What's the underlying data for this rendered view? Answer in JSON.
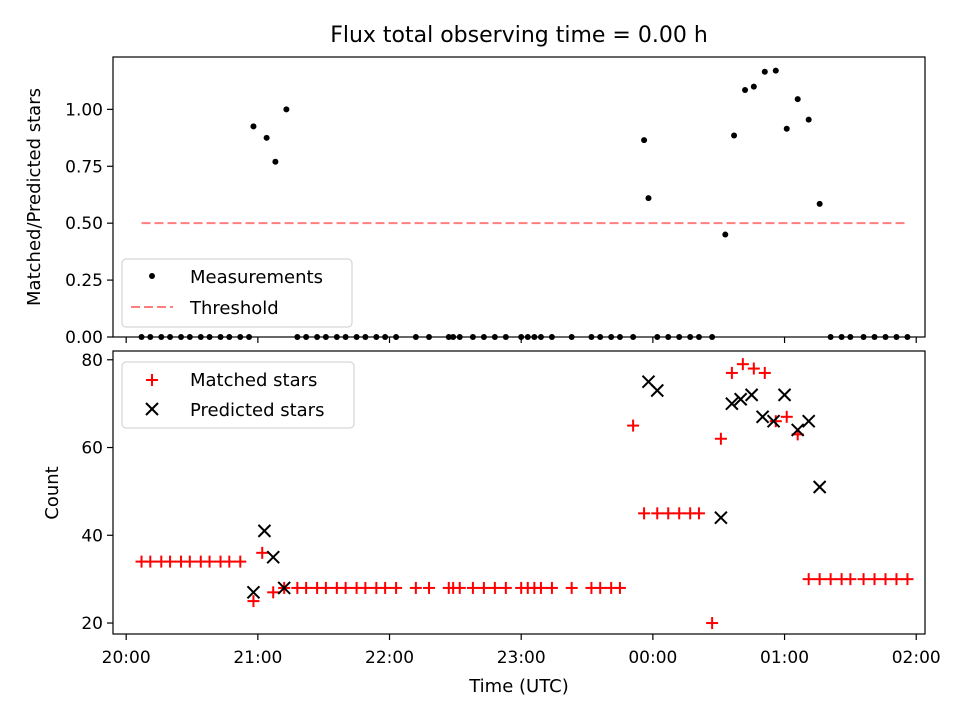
{
  "title": "Flux total observing time = 0.00 h",
  "chart_data": [
    {
      "type": "scatter",
      "ylabel": "Matched/Predicted stars",
      "ylim": [
        0,
        1.23
      ],
      "yticks": [
        "0.00",
        "0.25",
        "0.50",
        "0.75",
        "1.00"
      ],
      "ytick_values": [
        0,
        0.25,
        0.5,
        0.75,
        1.0
      ],
      "legend": {
        "placement": "lower-left",
        "measurements_label": "Measurements",
        "threshold_label": "Threshold"
      },
      "measurements": {
        "color": "#000000",
        "x": [
          "20:07",
          "20:11",
          "20:16",
          "20:20",
          "20:25",
          "20:29",
          "20:34",
          "20:38",
          "20:43",
          "20:47",
          "20:52",
          "20:56",
          "20:58",
          "21:04",
          "21:08",
          "21:13",
          "21:18",
          "21:22",
          "21:27",
          "21:31",
          "21:36",
          "21:40",
          "21:45",
          "21:49",
          "21:54",
          "21:58",
          "22:03",
          "22:12",
          "22:18",
          "22:27",
          "22:29",
          "22:32",
          "22:38",
          "22:43",
          "22:48",
          "22:53",
          "23:00",
          "23:03",
          "23:06",
          "23:09",
          "23:14",
          "23:23",
          "23:32",
          "23:36",
          "23:41",
          "23:45",
          "23:51",
          "23:56",
          "23:58",
          "00:02",
          "00:07",
          "00:12",
          "00:17",
          "00:21",
          "00:27",
          "00:33",
          "00:37",
          "00:42",
          "00:46",
          "00:51",
          "00:56",
          "01:01",
          "01:06",
          "01:11",
          "01:16",
          "01:21",
          "01:26",
          "01:30",
          "01:36",
          "01:41",
          "01:46",
          "01:51",
          "01:56"
        ],
        "y": [
          0,
          0,
          0,
          0,
          0,
          0,
          0,
          0,
          0,
          0,
          0,
          0,
          0.925,
          0.875,
          0.77,
          1.0,
          0,
          0,
          0,
          0,
          0,
          0,
          0,
          0,
          0,
          0,
          0,
          0,
          0,
          0,
          0,
          0,
          0,
          0,
          0,
          0,
          0,
          0,
          0,
          0,
          0,
          0,
          0,
          0,
          0,
          0,
          0,
          0.865,
          0.61,
          0,
          0,
          0,
          0,
          0,
          0,
          0.45,
          0.885,
          1.085,
          1.1,
          1.165,
          1.17,
          0.915,
          1.045,
          0.955,
          0.585,
          0,
          0,
          0,
          0,
          0,
          0,
          0,
          0
        ]
      },
      "threshold": {
        "color": "#ff7f7f",
        "x": [
          "20:07",
          "01:55"
        ],
        "y": 0.5
      }
    },
    {
      "type": "scatter",
      "xlabel": "Time (UTC)",
      "ylabel": "Count",
      "ylim": [
        17.5,
        82
      ],
      "yticks": [
        "20",
        "40",
        "60",
        "80"
      ],
      "ytick_values": [
        20,
        40,
        60,
        80
      ],
      "xticks": [
        "20:00",
        "21:00",
        "22:00",
        "23:00",
        "00:00",
        "01:00",
        "02:00"
      ],
      "xlim": [
        "19:54",
        "02:04"
      ],
      "legend": {
        "placement": "top-left",
        "matched_label": "Matched stars",
        "predicted_label": "Predicted stars"
      },
      "matched": {
        "color": "#ff0000",
        "x": [
          "20:07",
          "20:11",
          "20:16",
          "20:20",
          "20:25",
          "20:29",
          "20:34",
          "20:38",
          "20:43",
          "20:47",
          "20:52",
          "20:58",
          "21:02",
          "21:07",
          "21:12",
          "21:18",
          "21:22",
          "21:27",
          "21:31",
          "21:36",
          "21:40",
          "21:45",
          "21:49",
          "21:54",
          "21:58",
          "22:03",
          "22:12",
          "22:18",
          "22:27",
          "22:29",
          "22:32",
          "22:38",
          "22:43",
          "22:48",
          "22:53",
          "23:00",
          "23:03",
          "23:06",
          "23:09",
          "23:14",
          "23:23",
          "23:32",
          "23:36",
          "23:41",
          "23:45",
          "23:51",
          "23:56",
          "00:02",
          "00:07",
          "00:12",
          "00:17",
          "00:21",
          "00:27",
          "00:31",
          "00:36",
          "00:41",
          "00:46",
          "00:51",
          "00:56",
          "01:01",
          "01:06",
          "01:11",
          "01:16",
          "01:21",
          "01:26",
          "01:30",
          "01:36",
          "01:41",
          "01:46",
          "01:51",
          "01:56"
        ],
        "y": [
          34,
          34,
          34,
          34,
          34,
          34,
          34,
          34,
          34,
          34,
          34,
          25,
          36,
          27,
          28,
          28,
          28,
          28,
          28,
          28,
          28,
          28,
          28,
          28,
          28,
          28,
          28,
          28,
          28,
          28,
          28,
          28,
          28,
          28,
          28,
          28,
          28,
          28,
          28,
          28,
          28,
          28,
          28,
          28,
          28,
          65,
          45,
          45,
          45,
          45,
          45,
          45,
          20,
          62,
          77,
          79,
          78,
          77,
          66,
          67,
          63,
          30,
          30,
          30,
          30,
          30,
          30,
          30,
          30,
          30,
          30
        ]
      },
      "predicted": {
        "color": "#000000",
        "x": [
          "20:58",
          "21:03",
          "21:07",
          "21:12",
          "23:58",
          "00:02",
          "00:31",
          "00:36",
          "00:40",
          "00:45",
          "00:50",
          "00:55",
          "01:00",
          "01:06",
          "01:11",
          "01:16"
        ],
        "y": [
          27,
          41,
          35,
          28,
          75,
          73,
          44,
          70,
          71,
          72,
          67,
          66,
          72,
          64,
          66,
          51
        ]
      }
    }
  ]
}
